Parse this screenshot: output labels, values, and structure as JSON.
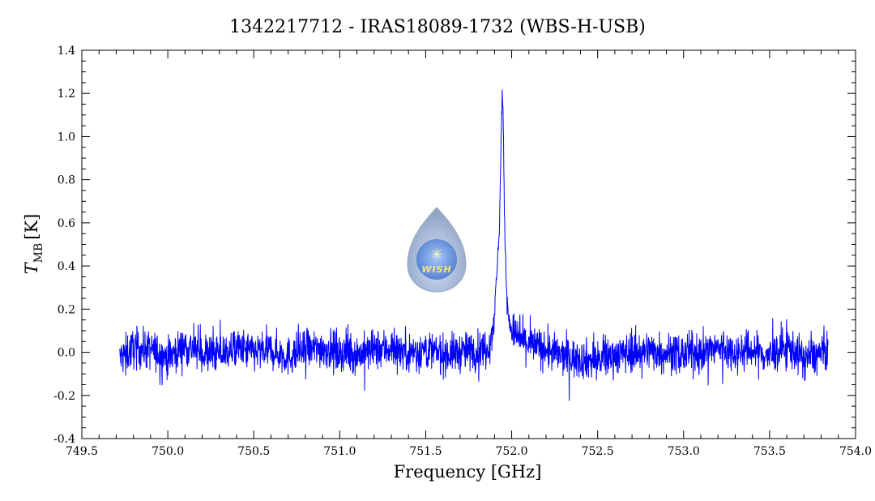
{
  "chart_data": {
    "type": "line",
    "title": "1342217712 - IRAS18089-1732 (WBS-H-USB)",
    "xlabel": "Frequency [GHz]",
    "ylabel_main": "T",
    "ylabel_sub": "MB",
    "ylabel_unit": "[K]",
    "xlim": [
      749.5,
      754.0
    ],
    "ylim": [
      -0.4,
      1.4
    ],
    "x_ticks": [
      "749.5",
      "750.0",
      "750.5",
      "751.0",
      "751.5",
      "752.0",
      "752.5",
      "753.0",
      "753.5",
      "754.0"
    ],
    "y_ticks": [
      "-0.4",
      "-0.2",
      "0.0",
      "0.2",
      "0.4",
      "0.6",
      "0.8",
      "1.0",
      "1.2",
      "1.4"
    ],
    "grid": false,
    "series_color": "#0000ff",
    "series": [
      {
        "x": [
          749.72,
          749.8,
          749.9,
          750.0,
          750.1,
          750.2,
          750.3,
          750.4,
          750.5,
          750.6,
          750.7,
          750.8,
          750.9,
          751.0,
          751.1,
          751.2,
          751.3,
          751.4,
          751.5,
          751.6,
          751.7,
          751.8,
          751.85,
          751.88,
          751.9,
          751.92,
          751.93,
          751.94,
          751.945,
          751.95,
          751.955,
          751.96,
          751.97,
          751.98,
          752.0,
          752.05,
          752.1,
          752.2,
          752.3,
          752.4,
          752.5,
          752.6,
          752.7,
          752.8,
          752.9,
          753.0,
          753.1,
          753.2,
          753.3,
          753.4,
          753.5,
          753.6,
          753.7,
          753.84
        ],
        "y": [
          -0.03,
          0.02,
          0.01,
          -0.02,
          0.03,
          0.0,
          -0.01,
          0.02,
          0.0,
          0.01,
          -0.02,
          0.01,
          0.02,
          0.0,
          -0.01,
          0.01,
          0.02,
          0.0,
          0.01,
          -0.01,
          0.0,
          0.01,
          0.02,
          0.06,
          0.18,
          0.45,
          0.62,
          1.05,
          1.2,
          1.12,
          0.8,
          0.55,
          0.3,
          0.18,
          0.1,
          0.06,
          0.04,
          0.01,
          -0.02,
          -0.03,
          -0.04,
          -0.01,
          0.0,
          0.01,
          0.0,
          -0.01,
          0.0,
          0.02,
          0.0,
          0.01,
          -0.02,
          0.03,
          -0.03,
          0.0
        ]
      }
    ]
  },
  "logo": {
    "text": "WISH"
  }
}
